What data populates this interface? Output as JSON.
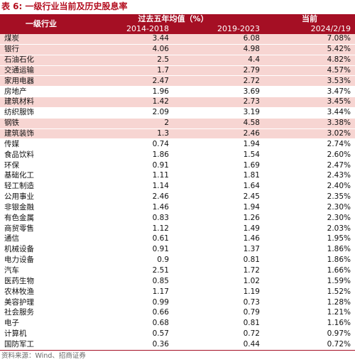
{
  "caption": "表 6:  一级行业当前及历史股息率",
  "table": {
    "industry_header": "一级行业",
    "group_header": "过去五年均值（%）",
    "current_header": "当前",
    "sub_headers": [
      "2014-2018",
      "2019-2023",
      "2024/2/19"
    ],
    "rows": [
      {
        "name": "煤炭",
        "v1": "3.44",
        "v2": "6.08",
        "v3": "7.08%",
        "hl": true
      },
      {
        "name": "银行",
        "v1": "4.06",
        "v2": "4.98",
        "v3": "5.42%",
        "hl": true
      },
      {
        "name": "石油石化",
        "v1": "2.5",
        "v2": "4.4",
        "v3": "4.82%",
        "hl": true
      },
      {
        "name": "交通运输",
        "v1": "1.7",
        "v2": "2.79",
        "v3": "4.57%",
        "hl": true
      },
      {
        "name": "家用电器",
        "v1": "2.47",
        "v2": "2.72",
        "v3": "3.53%",
        "hl": true
      },
      {
        "name": "房地产",
        "v1": "1.96",
        "v2": "3.69",
        "v3": "3.47%",
        "hl": false
      },
      {
        "name": "建筑材料",
        "v1": "1.42",
        "v2": "2.73",
        "v3": "3.45%",
        "hl": true
      },
      {
        "name": "纺织服饰",
        "v1": "2.09",
        "v2": "3.19",
        "v3": "3.44%",
        "hl": false
      },
      {
        "name": "钢铁",
        "v1": "2",
        "v2": "4.58",
        "v3": "3.38%",
        "hl": true
      },
      {
        "name": "建筑装饰",
        "v1": "1.3",
        "v2": "2.46",
        "v3": "3.02%",
        "hl": true
      },
      {
        "name": "传媒",
        "v1": "0.74",
        "v2": "1.94",
        "v3": "2.74%",
        "hl": false
      },
      {
        "name": "食品饮料",
        "v1": "1.86",
        "v2": "1.54",
        "v3": "2.60%",
        "hl": false
      },
      {
        "name": "环保",
        "v1": "0.91",
        "v2": "1.69",
        "v3": "2.47%",
        "hl": false
      },
      {
        "name": "基础化工",
        "v1": "1.11",
        "v2": "1.81",
        "v3": "2.43%",
        "hl": false
      },
      {
        "name": "轻工制造",
        "v1": "1.14",
        "v2": "1.64",
        "v3": "2.40%",
        "hl": false
      },
      {
        "name": "公用事业",
        "v1": "2.46",
        "v2": "2.45",
        "v3": "2.35%",
        "hl": false
      },
      {
        "name": "非银金融",
        "v1": "1.46",
        "v2": "1.94",
        "v3": "2.30%",
        "hl": false
      },
      {
        "name": "有色金属",
        "v1": "0.83",
        "v2": "1.26",
        "v3": "2.30%",
        "hl": false
      },
      {
        "name": "商贸零售",
        "v1": "1.12",
        "v2": "1.49",
        "v3": "2.03%",
        "hl": false
      },
      {
        "name": "通信",
        "v1": "0.61",
        "v2": "1.46",
        "v3": "1.95%",
        "hl": false
      },
      {
        "name": "机械设备",
        "v1": "0.91",
        "v2": "1.37",
        "v3": "1.86%",
        "hl": false
      },
      {
        "name": "电力设备",
        "v1": "0.9",
        "v2": "0.81",
        "v3": "1.86%",
        "hl": false
      },
      {
        "name": "汽车",
        "v1": "2.51",
        "v2": "1.72",
        "v3": "1.66%",
        "hl": false
      },
      {
        "name": "医药生物",
        "v1": "0.85",
        "v2": "1.02",
        "v3": "1.59%",
        "hl": false
      },
      {
        "name": "农林牧渔",
        "v1": "1.17",
        "v2": "1.19",
        "v3": "1.52%",
        "hl": false
      },
      {
        "name": "美容护理",
        "v1": "0.99",
        "v2": "0.73",
        "v3": "1.28%",
        "hl": false
      },
      {
        "name": "社会服务",
        "v1": "0.66",
        "v2": "0.79",
        "v3": "1.21%",
        "hl": false
      },
      {
        "name": "电子",
        "v1": "0.68",
        "v2": "0.81",
        "v3": "1.16%",
        "hl": false
      },
      {
        "name": "计算机",
        "v1": "0.57",
        "v2": "0.72",
        "v3": "0.97%",
        "hl": false
      },
      {
        "name": "国防军工",
        "v1": "0.36",
        "v2": "0.44",
        "v3": "0.72%",
        "hl": false
      }
    ]
  },
  "source": "资料来源：Wind、招商证券",
  "colors": {
    "header_bg": "#a50f24",
    "highlight_bg": "#f7d5d2",
    "caption": "#b30d1e"
  }
}
